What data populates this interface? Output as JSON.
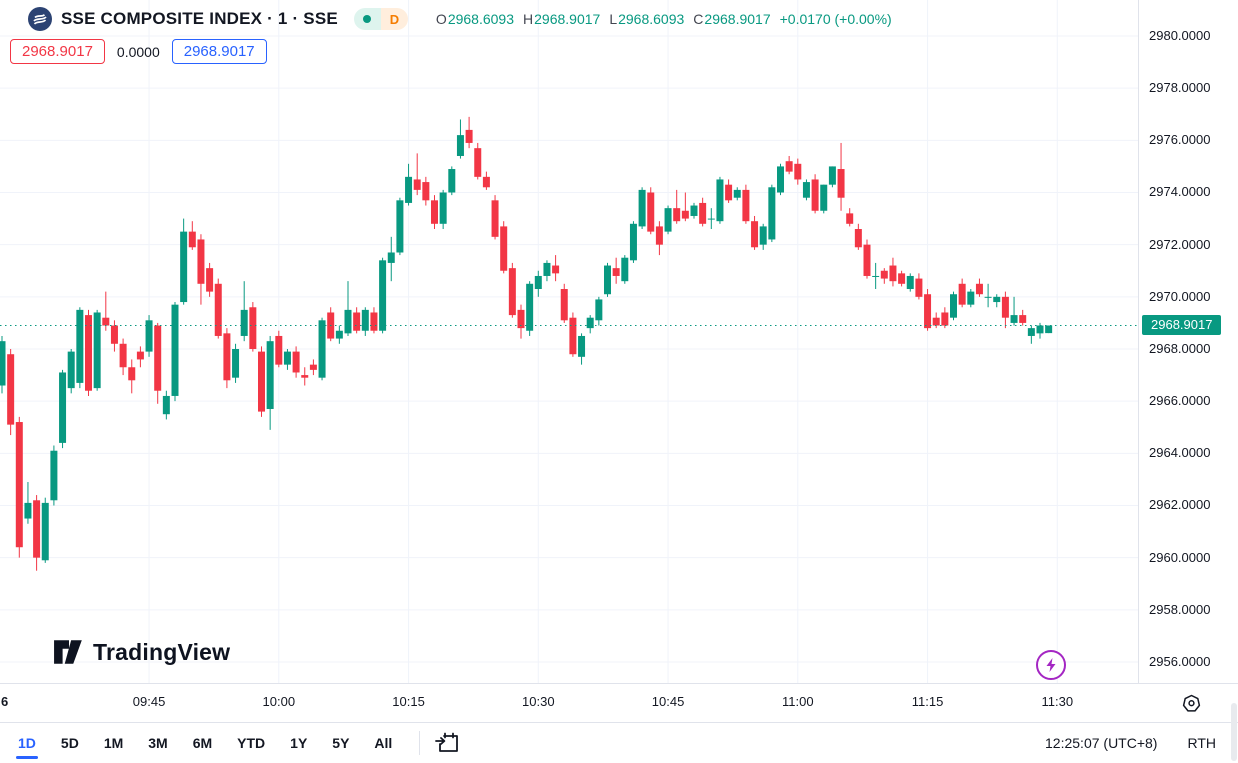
{
  "header": {
    "symbol_title": "SSE COMPOSITE INDEX · 1 · SSE",
    "interval_badge": "D",
    "ohlc": {
      "o_label": "O",
      "open": "2968.6093",
      "h_label": "H",
      "high": "2968.9017",
      "l_label": "L",
      "low": "2968.6093",
      "c_label": "C",
      "close": "2968.9017",
      "change": "+0.0170 (+0.00%)"
    },
    "trade_panel": {
      "sell": "2968.9017",
      "spread": "0.0000",
      "buy": "2968.9017"
    }
  },
  "watermark": {
    "brand": "TradingView"
  },
  "price_axis": {
    "labels": [
      "2980.0000",
      "2978.0000",
      "2976.0000",
      "2974.0000",
      "2972.0000",
      "2970.0000",
      "2968.0000",
      "2966.0000",
      "2964.0000",
      "2962.0000",
      "2960.0000",
      "2958.0000",
      "2956.0000"
    ],
    "last_price_label": "2968.9017"
  },
  "time_axis": {
    "left_date_label": "6",
    "labels": [
      {
        "text": "09:45",
        "minute": 17
      },
      {
        "text": "10:00",
        "minute": 32
      },
      {
        "text": "10:15",
        "minute": 47
      },
      {
        "text": "10:30",
        "minute": 62
      },
      {
        "text": "10:45",
        "minute": 77
      },
      {
        "text": "11:00",
        "minute": 92
      },
      {
        "text": "11:15",
        "minute": 107
      },
      {
        "text": "11:30",
        "minute": 122
      }
    ]
  },
  "toolbar": {
    "ranges": [
      "1D",
      "5D",
      "1M",
      "3M",
      "6M",
      "YTD",
      "1Y",
      "5Y",
      "All"
    ],
    "active_range": "1D",
    "clock": "12:25:07 (UTC+8)",
    "session": "RTH"
  },
  "colors": {
    "up": "#089981",
    "down": "#f23645",
    "accent_blue": "#2962ff",
    "grid": "#f0f3fa",
    "text": "#131722",
    "purple": "#a426c3",
    "interval_orange": "#f57c00"
  },
  "chart_data": {
    "type": "candlestick",
    "title": "SSE COMPOSITE INDEX",
    "interval": "1 minute",
    "exchange": "SSE",
    "last_price": 2968.9017,
    "ylim": [
      2955.3,
      2981.4
    ],
    "y_gridlines": [
      2980,
      2978,
      2976,
      2974,
      2972,
      2970,
      2968,
      2966,
      2964,
      2962,
      2960,
      2958,
      2956
    ],
    "x_gridline_minutes": [
      17,
      32,
      47,
      62,
      77,
      92,
      107,
      122
    ],
    "grid": true,
    "candles": [
      [
        "09:28",
        2966.6,
        2968.5,
        2966.3,
        2968.3
      ],
      [
        "09:29",
        2967.8,
        2968.0,
        2964.7,
        2965.1
      ],
      [
        "09:30",
        2965.2,
        2965.4,
        2960.0,
        2960.4
      ],
      [
        "09:31",
        2961.5,
        2962.9,
        2961.3,
        2962.1
      ],
      [
        "09:32",
        2962.2,
        2962.4,
        2959.5,
        2960.0
      ],
      [
        "09:33",
        2959.9,
        2962.3,
        2959.8,
        2962.1
      ],
      [
        "09:34",
        2962.2,
        2964.3,
        2962.0,
        2964.1
      ],
      [
        "09:35",
        2964.4,
        2967.2,
        2964.2,
        2967.1
      ],
      [
        "09:36",
        2966.5,
        2968.0,
        2966.3,
        2967.9
      ],
      [
        "09:37",
        2966.7,
        2969.6,
        2966.5,
        2969.5
      ],
      [
        "09:38",
        2969.3,
        2969.5,
        2966.2,
        2966.4
      ],
      [
        "09:39",
        2966.5,
        2969.5,
        2966.4,
        2969.4
      ],
      [
        "09:40",
        2969.2,
        2970.2,
        2968.7,
        2968.9
      ],
      [
        "09:41",
        2968.9,
        2969.1,
        2967.9,
        2968.2
      ],
      [
        "09:42",
        2968.2,
        2968.4,
        2967.0,
        2967.3
      ],
      [
        "09:43",
        2967.3,
        2967.6,
        2966.3,
        2966.8
      ],
      [
        "09:44",
        2967.9,
        2968.1,
        2967.3,
        2967.6
      ],
      [
        "09:45",
        2967.9,
        2969.3,
        2967.7,
        2969.1
      ],
      [
        "09:46",
        2968.9,
        2969.0,
        2965.9,
        2966.4
      ],
      [
        "09:47",
        2965.5,
        2966.4,
        2965.3,
        2966.2
      ],
      [
        "09:48",
        2966.2,
        2969.8,
        2966.0,
        2969.7
      ],
      [
        "09:49",
        2969.8,
        2973.0,
        2969.7,
        2972.5
      ],
      [
        "09:50",
        2972.5,
        2972.9,
        2971.8,
        2971.9
      ],
      [
        "09:51",
        2972.2,
        2972.4,
        2969.7,
        2970.5
      ],
      [
        "09:52",
        2971.1,
        2971.3,
        2970.0,
        2970.2
      ],
      [
        "09:53",
        2970.5,
        2970.7,
        2968.4,
        2968.5
      ],
      [
        "09:54",
        2968.6,
        2968.8,
        2966.5,
        2966.8
      ],
      [
        "09:55",
        2966.9,
        2968.2,
        2966.7,
        2968.0
      ],
      [
        "09:56",
        2968.5,
        2970.6,
        2968.3,
        2969.5
      ],
      [
        "09:57",
        2969.6,
        2969.8,
        2967.9,
        2968.0
      ],
      [
        "09:58",
        2967.9,
        2968.1,
        2965.4,
        2965.6
      ],
      [
        "09:59",
        2965.7,
        2968.5,
        2964.9,
        2968.3
      ],
      [
        "10:00",
        2968.5,
        2968.7,
        2967.3,
        2967.4
      ],
      [
        "10:01",
        2967.4,
        2968.0,
        2967.2,
        2967.9
      ],
      [
        "10:02",
        2967.9,
        2968.1,
        2966.9,
        2967.1
      ],
      [
        "10:03",
        2967.0,
        2967.3,
        2966.6,
        2966.9
      ],
      [
        "10:04",
        2967.4,
        2967.6,
        2967.0,
        2967.2
      ],
      [
        "10:05",
        2966.9,
        2969.2,
        2966.8,
        2969.1
      ],
      [
        "10:06",
        2969.4,
        2969.6,
        2968.3,
        2968.4
      ],
      [
        "10:07",
        2968.4,
        2968.9,
        2968.2,
        2968.7
      ],
      [
        "10:08",
        2968.6,
        2970.6,
        2968.5,
        2969.5
      ],
      [
        "10:09",
        2969.4,
        2969.6,
        2968.6,
        2968.7
      ],
      [
        "10:10",
        2968.7,
        2969.6,
        2968.5,
        2969.5
      ],
      [
        "10:11",
        2969.4,
        2969.6,
        2968.6,
        2968.7
      ],
      [
        "10:12",
        2968.7,
        2971.5,
        2968.6,
        2971.4
      ],
      [
        "10:13",
        2971.3,
        2972.3,
        2970.6,
        2971.7
      ],
      [
        "10:14",
        2971.7,
        2973.8,
        2971.6,
        2973.7
      ],
      [
        "10:15",
        2973.6,
        2975.1,
        2973.5,
        2974.6
      ],
      [
        "10:16",
        2974.5,
        2975.5,
        2973.9,
        2974.1
      ],
      [
        "10:17",
        2974.4,
        2974.6,
        2973.5,
        2973.7
      ],
      [
        "10:18",
        2973.7,
        2973.9,
        2972.6,
        2972.8
      ],
      [
        "10:19",
        2972.8,
        2974.1,
        2972.6,
        2974.0
      ],
      [
        "10:20",
        2974.0,
        2975.0,
        2973.9,
        2974.9
      ],
      [
        "10:21",
        2975.4,
        2976.8,
        2975.3,
        2976.2
      ],
      [
        "10:22",
        2976.4,
        2976.9,
        2975.7,
        2975.9
      ],
      [
        "10:23",
        2975.7,
        2975.9,
        2974.5,
        2974.6
      ],
      [
        "10:24",
        2974.6,
        2974.8,
        2974.1,
        2974.2
      ],
      [
        "10:25",
        2973.7,
        2973.9,
        2972.2,
        2972.3
      ],
      [
        "10:26",
        2972.7,
        2972.9,
        2970.9,
        2971.0
      ],
      [
        "10:27",
        2971.1,
        2971.3,
        2969.2,
        2969.3
      ],
      [
        "10:28",
        2969.5,
        2969.7,
        2968.4,
        2968.8
      ],
      [
        "10:29",
        2968.7,
        2970.6,
        2968.5,
        2970.5
      ],
      [
        "10:30",
        2970.3,
        2971.0,
        2970.0,
        2970.8
      ],
      [
        "10:31",
        2970.8,
        2971.4,
        2970.6,
        2971.3
      ],
      [
        "10:32",
        2971.2,
        2971.6,
        2970.6,
        2970.9
      ],
      [
        "10:33",
        2970.3,
        2970.5,
        2969.0,
        2969.1
      ],
      [
        "10:34",
        2969.2,
        2969.4,
        2967.7,
        2967.8
      ],
      [
        "10:35",
        2967.7,
        2968.6,
        2967.4,
        2968.5
      ],
      [
        "10:36",
        2968.8,
        2969.3,
        2968.6,
        2969.2
      ],
      [
        "10:37",
        2969.1,
        2970.0,
        2968.9,
        2969.9
      ],
      [
        "10:38",
        2970.1,
        2971.3,
        2970.0,
        2971.2
      ],
      [
        "10:39",
        2971.1,
        2971.5,
        2970.5,
        2970.8
      ],
      [
        "10:40",
        2970.6,
        2971.6,
        2970.5,
        2971.5
      ],
      [
        "10:41",
        2971.4,
        2972.9,
        2971.3,
        2972.8
      ],
      [
        "10:42",
        2972.7,
        2974.2,
        2972.6,
        2974.1
      ],
      [
        "10:43",
        2974.0,
        2974.2,
        2972.4,
        2972.5
      ],
      [
        "10:44",
        2972.7,
        2972.9,
        2971.6,
        2972.0
      ],
      [
        "10:45",
        2972.5,
        2973.5,
        2972.4,
        2973.4
      ],
      [
        "10:46",
        2973.4,
        2974.1,
        2972.8,
        2972.9
      ],
      [
        "10:47",
        2973.3,
        2974.0,
        2972.9,
        2973.0
      ],
      [
        "10:48",
        2973.1,
        2973.6,
        2973.0,
        2973.5
      ],
      [
        "10:49",
        2973.6,
        2973.8,
        2972.7,
        2972.8
      ],
      [
        "10:50",
        2973.0,
        2973.4,
        2972.6,
        2973.0
      ],
      [
        "10:51",
        2972.9,
        2974.6,
        2972.8,
        2974.5
      ],
      [
        "10:52",
        2974.3,
        2974.5,
        2973.6,
        2973.7
      ],
      [
        "10:53",
        2973.8,
        2974.2,
        2973.7,
        2974.1
      ],
      [
        "10:54",
        2974.1,
        2974.3,
        2972.8,
        2972.9
      ],
      [
        "10:55",
        2972.9,
        2973.1,
        2971.8,
        2971.9
      ],
      [
        "10:56",
        2972.0,
        2972.8,
        2971.8,
        2972.7
      ],
      [
        "10:57",
        2972.2,
        2974.3,
        2972.1,
        2974.2
      ],
      [
        "10:58",
        2974.0,
        2975.1,
        2973.9,
        2975.0
      ],
      [
        "10:59",
        2975.2,
        2975.4,
        2974.7,
        2974.8
      ],
      [
        "11:00",
        2975.1,
        2975.3,
        2974.3,
        2974.5
      ],
      [
        "11:01",
        2973.8,
        2974.5,
        2973.7,
        2974.4
      ],
      [
        "11:02",
        2974.5,
        2974.7,
        2973.2,
        2973.3
      ],
      [
        "11:03",
        2973.3,
        2974.3,
        2973.2,
        2974.3
      ],
      [
        "11:04",
        2974.3,
        2975.0,
        2974.2,
        2975.0
      ],
      [
        "11:05",
        2974.9,
        2975.9,
        2973.3,
        2973.8
      ],
      [
        "11:06",
        2973.2,
        2973.4,
        2972.7,
        2972.8
      ],
      [
        "11:07",
        2972.6,
        2972.8,
        2971.8,
        2971.9
      ],
      [
        "11:08",
        2972.0,
        2972.2,
        2970.7,
        2970.8
      ],
      [
        "11:09",
        2970.8,
        2971.3,
        2970.3,
        2970.8
      ],
      [
        "11:10",
        2971.0,
        2971.1,
        2970.5,
        2970.7
      ],
      [
        "11:11",
        2971.2,
        2971.5,
        2970.4,
        2970.6
      ],
      [
        "11:12",
        2970.9,
        2971.0,
        2970.4,
        2970.5
      ],
      [
        "11:13",
        2970.3,
        2970.9,
        2970.2,
        2970.8
      ],
      [
        "11:14",
        2970.7,
        2970.9,
        2969.9,
        2970.0
      ],
      [
        "11:15",
        2970.1,
        2970.3,
        2968.7,
        2968.8
      ],
      [
        "11:16",
        2969.2,
        2969.4,
        2968.8,
        2968.9
      ],
      [
        "11:17",
        2969.4,
        2969.6,
        2968.8,
        2968.9
      ],
      [
        "11:18",
        2969.2,
        2970.2,
        2969.1,
        2970.1
      ],
      [
        "11:19",
        2970.5,
        2970.7,
        2969.6,
        2969.7
      ],
      [
        "11:20",
        2969.7,
        2970.3,
        2969.6,
        2970.2
      ],
      [
        "11:21",
        2970.5,
        2970.7,
        2970.0,
        2970.1
      ],
      [
        "11:22",
        2970.0,
        2970.5,
        2969.6,
        2970.0
      ],
      [
        "11:23",
        2969.8,
        2970.1,
        2969.6,
        2970.0
      ],
      [
        "11:24",
        2970.0,
        2970.2,
        2968.8,
        2969.2
      ],
      [
        "11:25",
        2969.0,
        2970.0,
        2968.9,
        2969.3
      ],
      [
        "11:26",
        2969.3,
        2969.5,
        2968.9,
        2969.0
      ],
      [
        "11:27",
        2968.5,
        2968.9,
        2968.2,
        2968.8
      ],
      [
        "11:28",
        2968.6,
        2969.0,
        2968.4,
        2968.9
      ],
      [
        "11:29",
        2968.6093,
        2968.9017,
        2968.6093,
        2968.9017
      ]
    ]
  }
}
